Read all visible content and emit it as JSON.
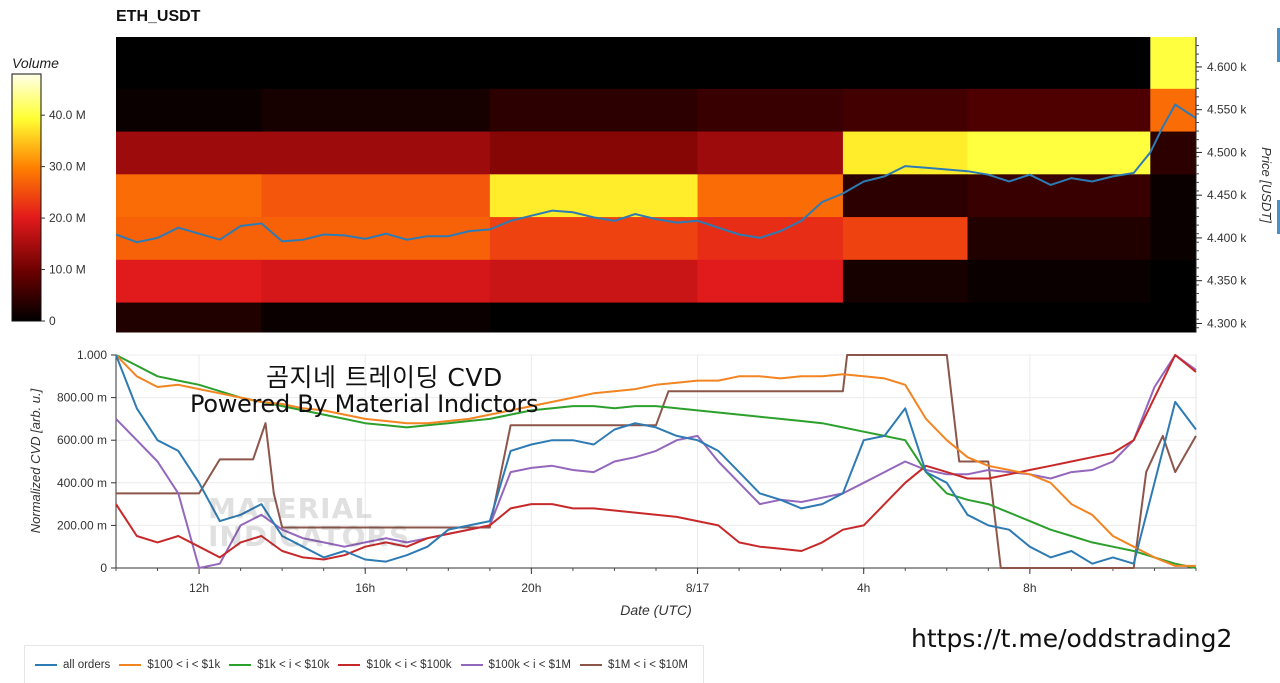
{
  "title": "ETH_USDT",
  "watermark_kr": "곰지네 트레이딩 CVD",
  "watermark_en": "Powered By Material Indictors",
  "url": "https://t.me/oddstrading2",
  "logo_text": [
    "MATERIAL",
    "INDICATORS"
  ],
  "colors": {
    "all_orders": "#2e7bb4",
    "b100_1k": "#f28522",
    "b1k_10k": "#2ca02c",
    "b10k_100k": "#c7292a",
    "b100k_1m": "#9467bd",
    "b1m_10m": "#8c564b"
  },
  "chart_data": [
    {
      "type": "heatmap",
      "title": "ETH_USDT",
      "ylabel": "Price [USDT]",
      "ylim": [
        4290,
        4635
      ],
      "yticks": [
        4300,
        4350,
        4400,
        4450,
        4500,
        4550,
        4600
      ],
      "ytick_labels": [
        "4.300 k",
        "4.350 k",
        "4.400 k",
        "4.450 k",
        "4.500 k",
        "4.550 k",
        "4.600 k"
      ],
      "colorbar": {
        "label": "Volume",
        "range": [
          0,
          48
        ],
        "ticks": [
          0,
          10,
          20,
          30,
          40
        ],
        "tick_labels": [
          "0",
          "10.0 M",
          "20.0 M",
          "30.0 M",
          "40.0 M"
        ]
      },
      "price_bands": [
        4300,
        4350,
        4400,
        4450,
        4500,
        4550,
        4600
      ],
      "time_segments_hours": [
        {
          "t0": 10,
          "t1": 13.5,
          "volumes": [
            3,
            20,
            27,
            28,
            14,
            1,
            0
          ]
        },
        {
          "t0": 13.5,
          "t1": 19,
          "volumes": [
            1,
            19,
            27,
            26,
            14,
            2,
            0
          ]
        },
        {
          "t0": 19,
          "t1": 24,
          "volumes": [
            0,
            18,
            24,
            38,
            12,
            4,
            0
          ]
        },
        {
          "t0": 24,
          "t1": 27.5,
          "volumes": [
            0,
            20,
            22,
            28,
            14,
            5,
            0
          ]
        },
        {
          "t0": 27.5,
          "t1": 30.5,
          "volumes": [
            0,
            2,
            24,
            4,
            38,
            6,
            0
          ]
        },
        {
          "t0": 30.5,
          "t1": 34.9,
          "volumes": [
            0,
            1,
            3,
            5,
            40,
            7,
            0
          ]
        },
        {
          "t0": 34.9,
          "t1": 36,
          "volumes": [
            0,
            0,
            1,
            1,
            4,
            28,
            40
          ]
        }
      ],
      "price_line": {
        "name": "price",
        "x_hours": [
          10,
          10.5,
          11,
          11.5,
          12,
          12.5,
          13,
          13.5,
          14,
          14.5,
          15,
          15.5,
          16,
          16.5,
          17,
          17.5,
          18,
          18.5,
          19,
          19.5,
          20,
          20.5,
          21,
          21.5,
          22,
          22.5,
          23,
          23.5,
          24,
          24.5,
          25,
          25.5,
          26,
          26.5,
          27,
          27.5,
          28,
          28.5,
          29,
          29.5,
          30,
          30.5,
          31,
          31.5,
          32,
          32.5,
          33,
          33.5,
          34,
          34.5,
          34.9,
          35.2,
          35.5,
          36
        ],
        "price": [
          4404,
          4395,
          4400,
          4412,
          4405,
          4398,
          4414,
          4417,
          4396,
          4398,
          4404,
          4403,
          4399,
          4405,
          4398,
          4402,
          4402,
          4408,
          4410,
          4420,
          4426,
          4432,
          4430,
          4424,
          4420,
          4428,
          4422,
          4418,
          4420,
          4412,
          4404,
          4400,
          4408,
          4420,
          4442,
          4452,
          4466,
          4472,
          4484,
          4482,
          4480,
          4478,
          4474,
          4466,
          4474,
          4462,
          4470,
          4466,
          4472,
          4476,
          4500,
          4530,
          4556,
          4540
        ]
      }
    },
    {
      "type": "line",
      "xlabel": "Date (UTC)",
      "ylabel": "Normalized CVD [arb. u.]",
      "ylim": [
        0,
        1
      ],
      "yticks": [
        0,
        0.2,
        0.4,
        0.6,
        0.8,
        1.0
      ],
      "ytick_labels": [
        "0",
        "200.00 m",
        "400.00 m",
        "600.00 m",
        "800.00 m",
        "1.000"
      ],
      "xlim_hours": [
        10,
        36
      ],
      "xticks_hours": [
        12,
        16,
        20,
        24,
        28,
        32
      ],
      "xtick_labels": [
        "12h",
        "16h",
        "20h",
        "8/17",
        "4h",
        "8h"
      ],
      "series": [
        {
          "name": "all orders",
          "x": [
            10,
            10.5,
            11,
            11.5,
            12,
            12.5,
            13,
            13.5,
            14,
            14.5,
            15,
            15.5,
            16,
            16.5,
            17,
            17.5,
            18,
            18.5,
            19,
            19.5,
            20,
            20.5,
            21,
            21.5,
            22,
            22.5,
            23,
            23.5,
            24,
            24.5,
            25,
            25.5,
            26,
            26.5,
            27,
            27.5,
            28,
            28.5,
            29,
            29.5,
            30,
            30.5,
            31,
            31.5,
            32,
            32.5,
            33,
            33.5,
            34,
            34.5,
            35,
            35.5,
            36
          ],
          "values": [
            1.0,
            0.75,
            0.6,
            0.55,
            0.4,
            0.22,
            0.25,
            0.3,
            0.15,
            0.1,
            0.05,
            0.08,
            0.04,
            0.03,
            0.06,
            0.1,
            0.18,
            0.2,
            0.22,
            0.55,
            0.58,
            0.6,
            0.6,
            0.58,
            0.65,
            0.68,
            0.66,
            0.62,
            0.6,
            0.55,
            0.45,
            0.35,
            0.32,
            0.28,
            0.3,
            0.35,
            0.6,
            0.62,
            0.75,
            0.45,
            0.4,
            0.25,
            0.2,
            0.18,
            0.1,
            0.05,
            0.08,
            0.02,
            0.05,
            0.02,
            0.4,
            0.78,
            0.65
          ]
        },
        {
          "name": "$100 < i < $1k",
          "x": [
            10,
            10.5,
            11,
            11.5,
            12,
            12.5,
            13,
            13.5,
            14,
            14.5,
            15,
            15.5,
            16,
            16.5,
            17,
            17.5,
            18,
            18.5,
            19,
            19.5,
            20,
            20.5,
            21,
            21.5,
            22,
            22.5,
            23,
            23.5,
            24,
            24.5,
            25,
            25.5,
            26,
            26.5,
            27,
            27.5,
            28,
            28.5,
            29,
            29.5,
            30,
            30.5,
            31,
            31.5,
            32,
            32.5,
            33,
            33.5,
            34,
            34.5,
            35,
            35.5,
            36
          ],
          "values": [
            1.0,
            0.9,
            0.85,
            0.86,
            0.84,
            0.82,
            0.8,
            0.78,
            0.77,
            0.75,
            0.74,
            0.72,
            0.7,
            0.69,
            0.68,
            0.68,
            0.69,
            0.7,
            0.72,
            0.74,
            0.76,
            0.78,
            0.8,
            0.82,
            0.83,
            0.84,
            0.86,
            0.87,
            0.88,
            0.88,
            0.9,
            0.9,
            0.89,
            0.9,
            0.9,
            0.91,
            0.9,
            0.89,
            0.86,
            0.7,
            0.6,
            0.52,
            0.48,
            0.46,
            0.44,
            0.4,
            0.3,
            0.25,
            0.15,
            0.1,
            0.05,
            0.01,
            0.01
          ]
        },
        {
          "name": "$1k < i < $10k",
          "x": [
            10,
            10.5,
            11,
            11.5,
            12,
            12.5,
            13,
            13.5,
            14,
            14.5,
            15,
            15.5,
            16,
            16.5,
            17,
            17.5,
            18,
            18.5,
            19,
            19.5,
            20,
            20.5,
            21,
            21.5,
            22,
            22.5,
            23,
            23.5,
            24,
            24.5,
            25,
            25.5,
            26,
            26.5,
            27,
            27.5,
            28,
            28.5,
            29,
            29.5,
            30,
            30.5,
            31,
            31.5,
            32,
            32.5,
            33,
            33.5,
            34,
            34.5,
            35,
            35.5,
            36
          ],
          "values": [
            1.0,
            0.95,
            0.9,
            0.88,
            0.86,
            0.83,
            0.8,
            0.78,
            0.76,
            0.74,
            0.72,
            0.7,
            0.68,
            0.67,
            0.66,
            0.67,
            0.68,
            0.69,
            0.7,
            0.72,
            0.74,
            0.75,
            0.76,
            0.76,
            0.75,
            0.76,
            0.76,
            0.75,
            0.74,
            0.73,
            0.72,
            0.71,
            0.7,
            0.69,
            0.68,
            0.66,
            0.64,
            0.62,
            0.6,
            0.45,
            0.35,
            0.32,
            0.3,
            0.26,
            0.22,
            0.18,
            0.15,
            0.12,
            0.1,
            0.08,
            0.05,
            0.02,
            0.0
          ]
        },
        {
          "name": "$10k < i < $100k",
          "x": [
            10,
            10.5,
            11,
            11.5,
            12,
            12.5,
            13,
            13.5,
            14,
            14.5,
            15,
            15.5,
            16,
            16.5,
            17,
            17.5,
            18,
            18.5,
            19,
            19.5,
            20,
            20.5,
            21,
            21.5,
            22,
            22.5,
            23,
            23.5,
            24,
            24.5,
            25,
            25.5,
            26,
            26.5,
            27,
            27.5,
            28,
            28.5,
            29,
            29.5,
            30,
            30.5,
            31,
            31.5,
            32,
            32.5,
            33,
            33.5,
            34,
            34.5,
            35,
            35.5,
            36
          ],
          "values": [
            0.3,
            0.15,
            0.12,
            0.15,
            0.1,
            0.05,
            0.12,
            0.15,
            0.08,
            0.05,
            0.04,
            0.06,
            0.1,
            0.12,
            0.1,
            0.14,
            0.16,
            0.18,
            0.2,
            0.28,
            0.3,
            0.3,
            0.28,
            0.28,
            0.27,
            0.26,
            0.25,
            0.24,
            0.22,
            0.2,
            0.12,
            0.1,
            0.09,
            0.08,
            0.12,
            0.18,
            0.2,
            0.3,
            0.4,
            0.48,
            0.45,
            0.42,
            0.42,
            0.44,
            0.46,
            0.48,
            0.5,
            0.52,
            0.54,
            0.6,
            0.8,
            1.0,
            0.92
          ]
        },
        {
          "name": "$100k < i < $1M",
          "x": [
            10,
            10.5,
            11,
            11.5,
            12,
            12.5,
            13,
            13.5,
            14,
            14.5,
            15,
            15.5,
            16,
            16.5,
            17,
            17.5,
            18,
            18.5,
            19,
            19.5,
            20,
            20.5,
            21,
            21.5,
            22,
            22.5,
            23,
            23.5,
            24,
            24.5,
            25,
            25.5,
            26,
            26.5,
            27,
            27.5,
            28,
            28.5,
            29,
            29.5,
            30,
            30.5,
            31,
            31.5,
            32,
            32.5,
            33,
            33.5,
            34,
            34.5,
            35,
            35.5,
            36
          ],
          "values": [
            0.7,
            0.6,
            0.5,
            0.35,
            0.0,
            0.02,
            0.2,
            0.25,
            0.18,
            0.14,
            0.12,
            0.1,
            0.12,
            0.14,
            0.12,
            0.14,
            0.16,
            0.18,
            0.2,
            0.45,
            0.47,
            0.48,
            0.46,
            0.45,
            0.5,
            0.52,
            0.55,
            0.6,
            0.62,
            0.5,
            0.4,
            0.3,
            0.32,
            0.31,
            0.33,
            0.35,
            0.4,
            0.45,
            0.5,
            0.46,
            0.44,
            0.44,
            0.46,
            0.45,
            0.44,
            0.42,
            0.45,
            0.46,
            0.5,
            0.6,
            0.85,
            1.0,
            0.93
          ]
        },
        {
          "name": "$1M < i < $10M",
          "x": [
            10,
            12,
            12.5,
            12.9,
            13.3,
            13.6,
            13.8,
            14.0,
            16,
            19.0,
            19.5,
            21.0,
            21.3,
            23.0,
            23.3,
            27.5,
            27.6,
            30.0,
            30.3,
            31.0,
            31.3,
            33.5,
            33.8,
            34.5,
            34.8,
            35.2,
            35.5,
            36
          ],
          "values": [
            0.35,
            0.35,
            0.51,
            0.51,
            0.51,
            0.68,
            0.35,
            0.19,
            0.19,
            0.19,
            0.67,
            0.67,
            0.67,
            0.67,
            0.83,
            0.83,
            1.0,
            1.0,
            0.5,
            0.5,
            0.0,
            0.0,
            0.0,
            0.0,
            0.45,
            0.62,
            0.45,
            0.62
          ]
        }
      ]
    }
  ]
}
